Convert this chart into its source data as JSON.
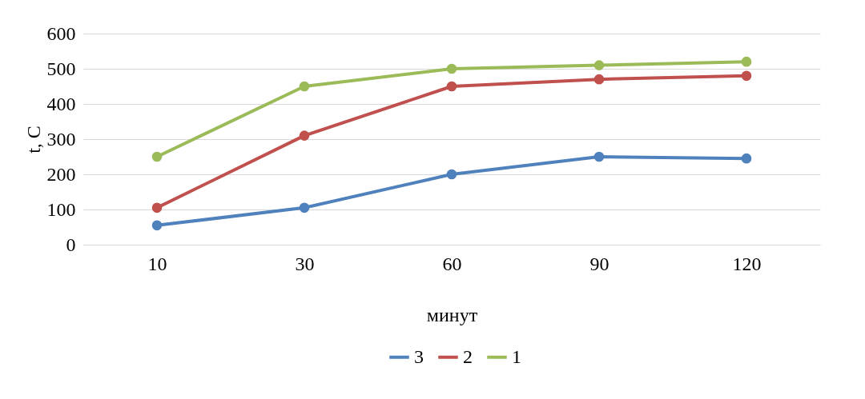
{
  "chart_data": {
    "type": "line",
    "xlabel": "минут",
    "ylabel": "t, C",
    "categories": [
      "10",
      "30",
      "60",
      "90",
      "120"
    ],
    "series": [
      {
        "name": "3",
        "color": "#4f81bd",
        "values": [
          55,
          105,
          200,
          250,
          245
        ]
      },
      {
        "name": "2",
        "color": "#c0504d",
        "values": [
          105,
          310,
          450,
          470,
          480
        ]
      },
      {
        "name": "1",
        "color": "#9bbb59",
        "values": [
          250,
          450,
          500,
          510,
          520
        ]
      }
    ],
    "ylim": [
      0,
      600
    ],
    "yticks": [
      0,
      100,
      200,
      300,
      400,
      500,
      600
    ],
    "grid": "y",
    "legend": "bottom",
    "marker": "circle",
    "line_style": "solid"
  }
}
